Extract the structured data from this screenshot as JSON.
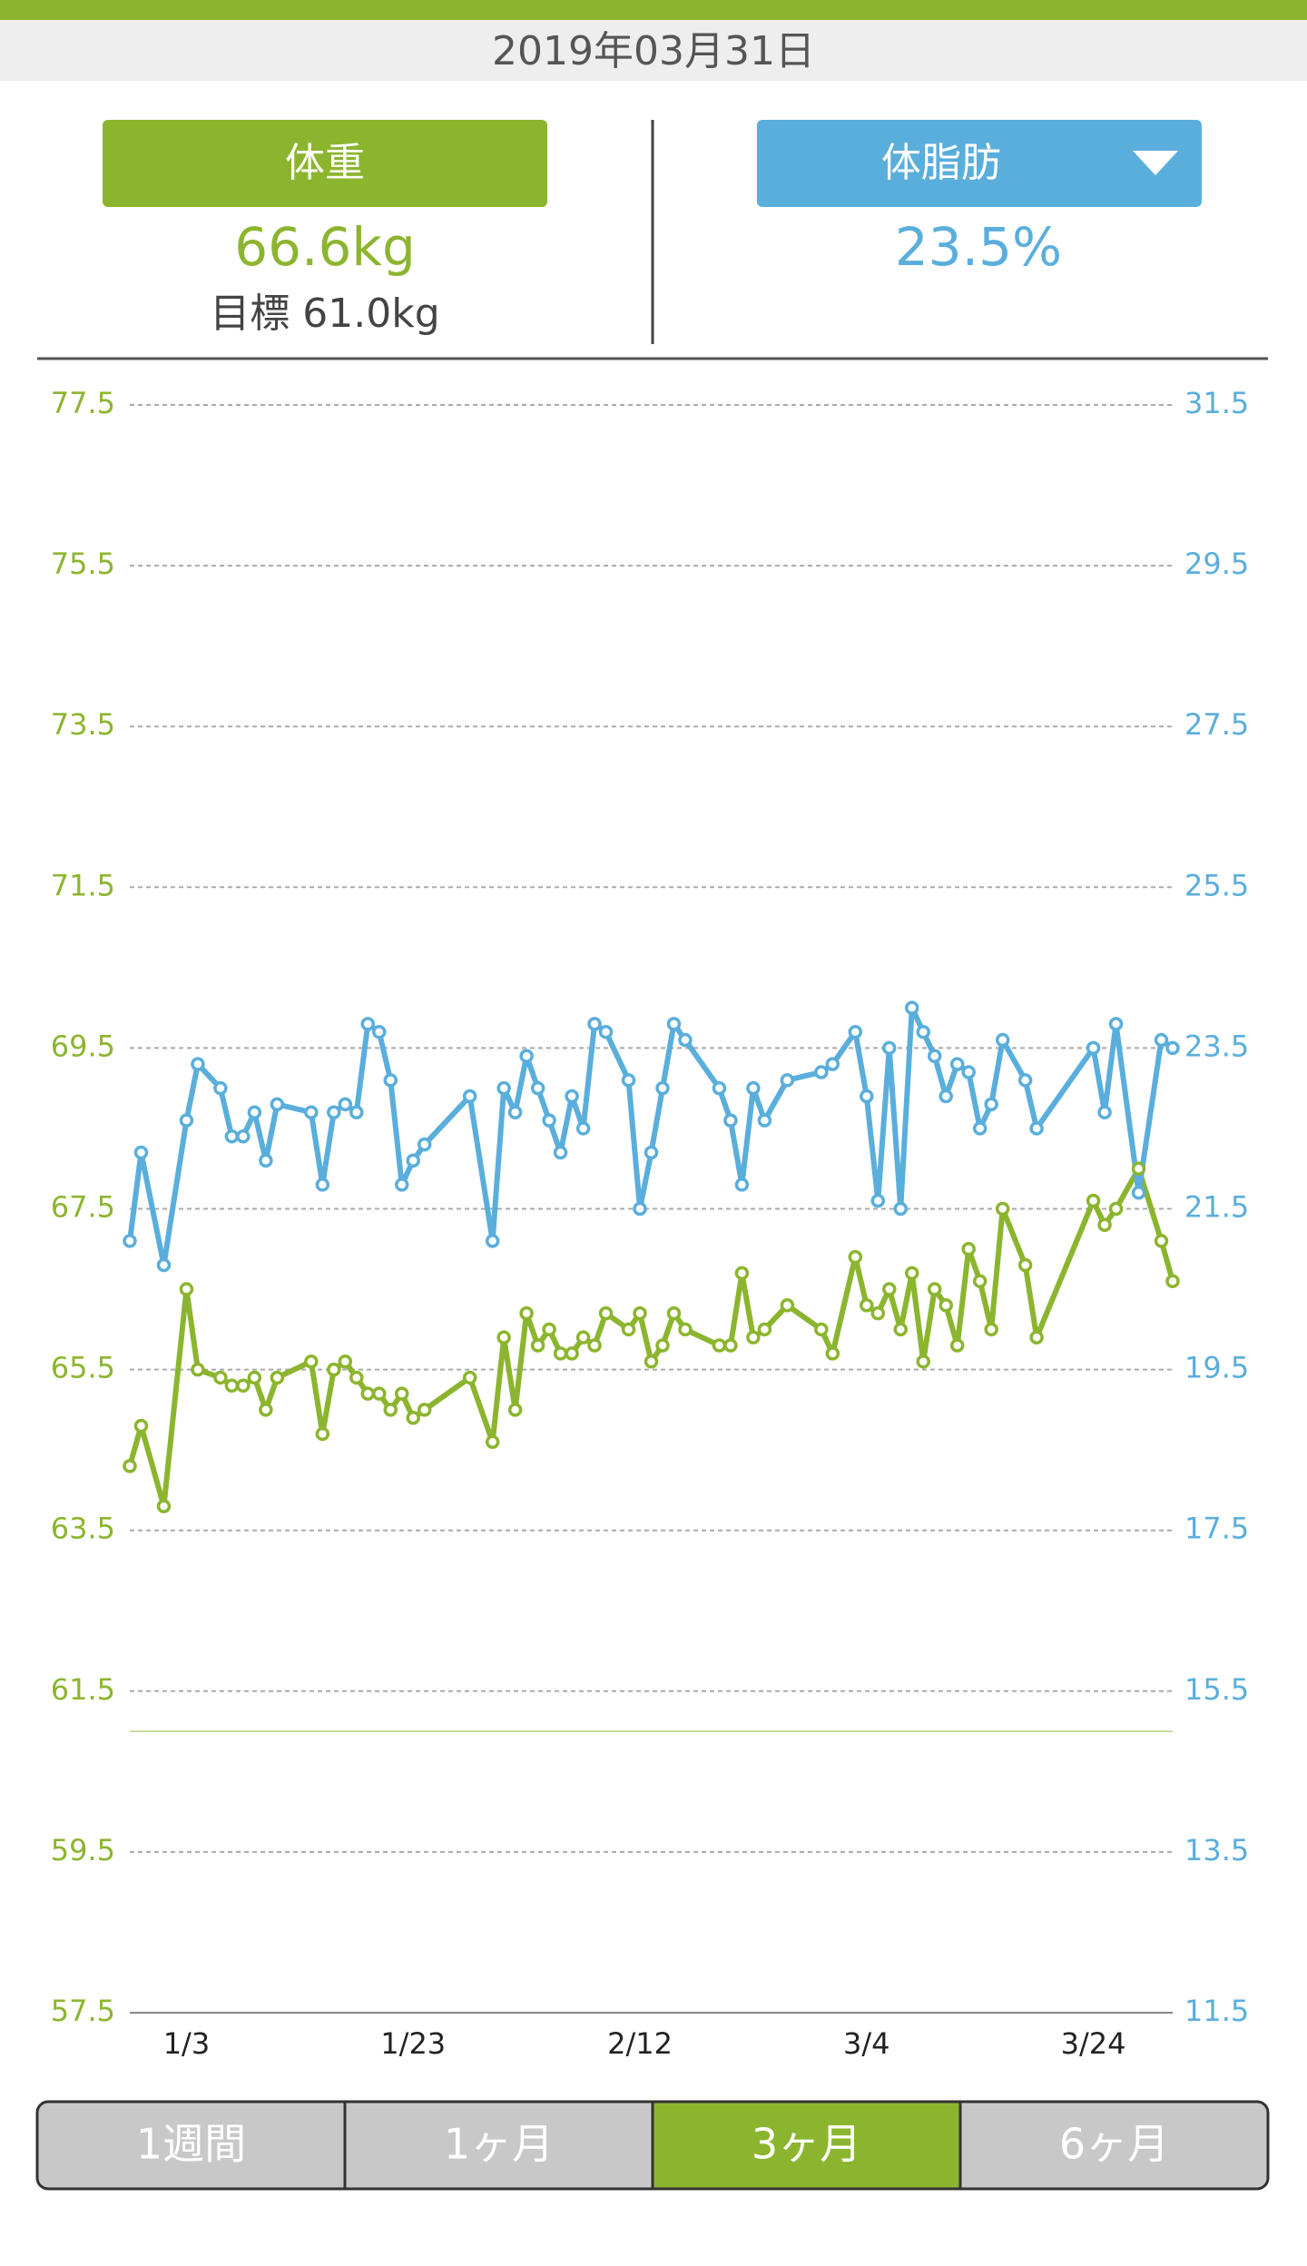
{
  "header": {
    "date": "2019年03月31日"
  },
  "weight_panel": {
    "value": "66.6kg",
    "goal": "目標 61.0kg"
  },
  "fat_panel": {
    "value": "23.5%"
  },
  "chart_data": {
    "type": "line",
    "x": [
      "12/29",
      "12/30",
      "1/1",
      "1/3",
      "1/4",
      "1/6",
      "1/7",
      "1/8",
      "1/9",
      "1/10",
      "1/11",
      "1/14",
      "1/15",
      "1/16",
      "1/17",
      "1/18",
      "1/19",
      "1/20",
      "1/21",
      "1/22",
      "1/23",
      "1/24",
      "1/28",
      "1/30",
      "1/31",
      "2/1",
      "2/2",
      "2/3",
      "2/4",
      "2/5",
      "2/6",
      "2/7",
      "2/8",
      "2/9",
      "2/11",
      "2/12",
      "2/13",
      "2/14",
      "2/15",
      "2/16",
      "2/19",
      "2/20",
      "2/21",
      "2/22",
      "2/23",
      "2/25",
      "2/28",
      "3/1",
      "3/3",
      "3/4",
      "3/5",
      "3/6",
      "3/7",
      "3/8",
      "3/9",
      "3/10",
      "3/11",
      "3/12",
      "3/13",
      "3/14",
      "3/15",
      "3/16",
      "3/18",
      "3/19",
      "3/24",
      "3/25",
      "3/26",
      "3/28",
      "3/30",
      "3/31"
    ],
    "xlim": [
      "12/29",
      "3/31"
    ],
    "xticks": [
      "1/3",
      "1/23",
      "2/12",
      "3/4",
      "3/24"
    ],
    "series": [
      {
        "name": "体重",
        "color": "#8cb52f",
        "values": [
          64.3,
          64.8,
          63.8,
          66.5,
          65.5,
          65.4,
          65.3,
          65.3,
          65.4,
          65.0,
          65.4,
          65.6,
          64.7,
          65.5,
          65.6,
          65.4,
          65.2,
          65.2,
          65.0,
          65.2,
          64.9,
          65.0,
          65.4,
          64.6,
          65.9,
          65.0,
          66.2,
          65.8,
          66.0,
          65.7,
          65.7,
          65.9,
          65.8,
          66.2,
          66.0,
          66.2,
          65.6,
          65.8,
          66.2,
          66.0,
          65.8,
          65.8,
          66.7,
          65.9,
          66.0,
          66.3,
          66.0,
          65.7,
          66.9,
          66.3,
          66.2,
          66.5,
          66.0,
          66.7,
          65.6,
          66.5,
          66.3,
          65.8,
          67.0,
          66.6,
          66.0,
          67.5,
          66.8,
          65.9,
          67.6,
          67.3,
          67.5,
          68.0,
          67.1,
          66.6
        ]
      },
      {
        "name": "体脂肪",
        "color": "#5aaedc",
        "axis": "y2",
        "values": [
          21.1,
          22.2,
          20.8,
          22.6,
          23.3,
          23.0,
          22.4,
          22.4,
          22.7,
          22.1,
          22.8,
          22.7,
          21.8,
          22.7,
          22.8,
          22.7,
          23.8,
          23.7,
          23.1,
          21.8,
          22.1,
          22.3,
          22.9,
          21.1,
          23.0,
          22.7,
          23.4,
          23.0,
          22.6,
          22.2,
          22.9,
          22.5,
          23.8,
          23.7,
          23.1,
          21.5,
          22.2,
          23.0,
          23.8,
          23.6,
          23.0,
          22.6,
          21.8,
          23.0,
          22.6,
          23.1,
          23.2,
          23.3,
          23.7,
          22.9,
          21.6,
          23.5,
          21.5,
          24.0,
          23.7,
          23.4,
          22.9,
          23.3,
          23.2,
          22.5,
          22.8,
          23.6,
          23.1,
          22.5,
          23.5,
          22.7,
          23.8,
          21.7,
          23.6,
          23.5
        ]
      }
    ],
    "ylim": [
      57.5,
      77.5
    ],
    "yticks": [
      57.5,
      59.5,
      61.5,
      63.5,
      65.5,
      67.5,
      69.5,
      71.5,
      73.5,
      75.5,
      77.5
    ],
    "y2lim": [
      11.5,
      31.5
    ],
    "y2ticks": [
      11.5,
      13.5,
      15.5,
      17.5,
      19.5,
      21.5,
      23.5,
      25.5,
      27.5,
      29.5,
      31.5
    ],
    "goal": 61,
    "grid": true
  },
  "tabs": {
    "items": [
      "1週間",
      "1ヶ月",
      "3ヶ月",
      "6ヶ月"
    ],
    "selected": 2
  }
}
